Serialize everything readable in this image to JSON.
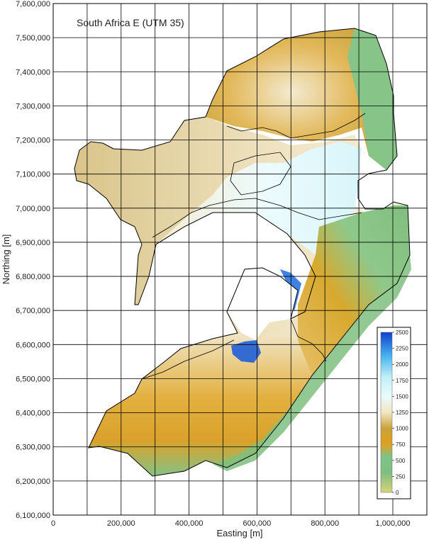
{
  "map": {
    "title": "South Africa E (UTM 35)",
    "x_axis_label": "Easting [m]",
    "y_axis_label": "Northing [m]",
    "x_ticks": [
      "0",
      "200,000",
      "400,000",
      "600,000",
      "800,000",
      "1,000,000"
    ],
    "y_ticks": [
      "7,600,000",
      "7,500,000",
      "7,400,000",
      "7,300,000",
      "7,200,000",
      "7,100,000",
      "7,000,000",
      "6,900,000",
      "6,800,000",
      "6,700,000",
      "6,600,000",
      "6,500,000",
      "6,400,000",
      "6,300,000",
      "6,200,000",
      "6,100,000"
    ],
    "grid": true,
    "colors": {
      "grid": "#000000",
      "border": "#000000",
      "lowland": "#7fbf7f",
      "midland": "#e0a020",
      "highland": "#f5edd6",
      "plateau": "#e8fbfd",
      "peak": "#1f5fd8"
    }
  },
  "legend": {
    "ticks": [
      "2500",
      "2250",
      "2000",
      "1750",
      "1500",
      "1250",
      "1000",
      "750",
      "500",
      "250",
      "0"
    ]
  }
}
